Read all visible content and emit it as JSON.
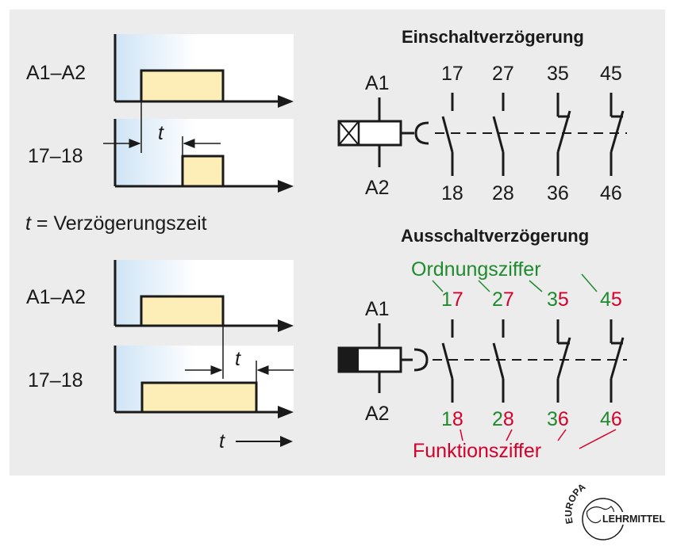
{
  "timing": {
    "signal_a1a2": "A1–A2",
    "signal_1718": "17–18",
    "t_symbol": "t",
    "t_definition": " = Verzögerungszeit",
    "time_axis": "t"
  },
  "relays": {
    "on_delay_title": "Einschaltverzögerung",
    "off_delay_title": "Ausschaltverzögerung",
    "coil_top": "A1",
    "coil_bottom": "A2"
  },
  "contacts_on": {
    "top": [
      "17",
      "27",
      "35",
      "45"
    ],
    "bottom": [
      "18",
      "28",
      "36",
      "46"
    ]
  },
  "contacts_off": {
    "top": [
      [
        "1",
        "7"
      ],
      [
        "2",
        "7"
      ],
      [
        "3",
        "5"
      ],
      [
        "4",
        "5"
      ]
    ],
    "bottom": [
      [
        "1",
        "8"
      ],
      [
        "2",
        "8"
      ],
      [
        "3",
        "6"
      ],
      [
        "4",
        "6"
      ]
    ],
    "ordnung_label": "Ordnungsziffer",
    "funktion_label": "Funktionsziffer"
  },
  "logo": {
    "text_top": "EUROPA",
    "text_bottom": "LEHRMITTEL"
  },
  "colors": {
    "ordnung": "#1f8a2e",
    "funktion": "#d7002a",
    "pulse": "#fdeeb8",
    "axis_box_gradient": "#cfe4f5"
  }
}
